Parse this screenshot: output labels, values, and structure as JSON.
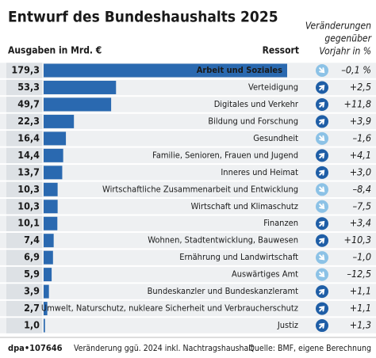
{
  "chart_data": {
    "type": "bar",
    "orientation": "horizontal",
    "title": "Entwurf des Bundeshaushalts 2025",
    "value_header": "Ausgaben in Mrd. €",
    "category_header": "Ressort",
    "change_header": [
      "Veränderungen",
      "gegenüber",
      "Vorjahr in %"
    ],
    "categories": [
      "Arbeit und Soziales",
      "Verteidigung",
      "Digitales und Verkehr",
      "Bildung und Forschung",
      "Gesundheit",
      "Familie, Senioren, Frauen und Jugend",
      "Inneres und Heimat",
      "Wirtschaftliche Zusammenarbeit und Entwicklung",
      "Wirtschaft und Klimaschutz",
      "Finanzen",
      "Wohnen, Stadtentwicklung, Bauwesen",
      "Ernährung und Landwirtschaft",
      "Auswärtiges Amt",
      "Bundeskanzler und Bundeskanzleramt",
      "Umwelt, Naturschutz, nukleare Sicherheit und Verbraucherschutz",
      "Justiz"
    ],
    "values": [
      179.3,
      53.3,
      49.7,
      22.3,
      16.4,
      14.4,
      13.7,
      10.3,
      10.3,
      10.1,
      7.4,
      6.9,
      5.9,
      3.9,
      2.7,
      1.0
    ],
    "value_labels": [
      "179,3",
      "53,3",
      "49,7",
      "22,3",
      "16,4",
      "14,4",
      "13,7",
      "10,3",
      "10,3",
      "10,1",
      "7,4",
      "6,9",
      "5,9",
      "3,9",
      "2,7",
      "1,0"
    ],
    "changes": [
      -0.1,
      2.5,
      11.8,
      3.9,
      -1.6,
      4.1,
      3.0,
      -8.4,
      -7.5,
      3.4,
      10.3,
      -1.0,
      -12.5,
      1.1,
      1.1,
      1.3
    ],
    "change_labels": [
      "–0,1 %",
      "+2,5",
      "+11,8",
      "+3,9",
      "–1,6",
      "+4,1",
      "+3,0",
      "–8,4",
      "–7,5",
      "+3,4",
      "+10,3",
      "–1,0",
      "–12,5",
      "+1,1",
      "+1,1",
      "+1,3"
    ],
    "color": "#2a69b0",
    "up_color": "#1f5ea6",
    "down_color": "#8cc2e6",
    "footer": {
      "source_id": "dpa•107646",
      "note": "Veränderung ggü. 2024 inkl. Nachtragshaushalt",
      "source": "Quelle: BMF, eigene Berechnung"
    }
  }
}
